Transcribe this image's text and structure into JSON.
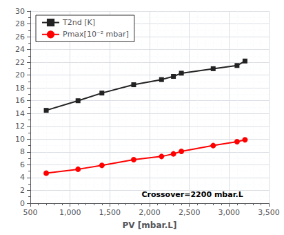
{
  "chart_data": {
    "type": "line",
    "xlabel": "PV [mbar.L]",
    "xlim": [
      500,
      3500
    ],
    "ylim": [
      0,
      30
    ],
    "xticks": [
      500,
      1000,
      1500,
      2000,
      2500,
      3000,
      3500
    ],
    "yticks": [
      0,
      2,
      4,
      6,
      8,
      10,
      12,
      14,
      16,
      18,
      20,
      22,
      24,
      26,
      28,
      30
    ],
    "grid": true,
    "legend": "upper left",
    "x": [
      700,
      1100,
      1400,
      1800,
      2150,
      2300,
      2400,
      2800,
      3100,
      3200
    ],
    "series": [
      {
        "name": "T2nd [K]",
        "color": "#222222",
        "marker": "square",
        "values": [
          14.5,
          16.0,
          17.2,
          18.5,
          19.3,
          19.8,
          20.3,
          21.0,
          21.5,
          22.2
        ]
      },
      {
        "name": "Pmax[10⁻² mbar]",
        "color": "#ff0000",
        "marker": "circle",
        "values": [
          4.7,
          5.3,
          5.9,
          6.8,
          7.3,
          7.7,
          8.1,
          9.0,
          9.6,
          9.9
        ]
      }
    ],
    "annotations": [
      {
        "text": "Crossover=2200 mbar.L",
        "x": 1900,
        "y": 0.8
      }
    ]
  }
}
